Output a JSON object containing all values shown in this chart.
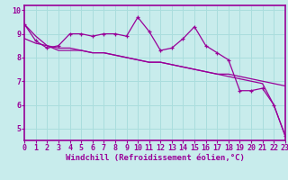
{
  "title": "",
  "xlabel": "Windchill (Refroidissement éolien,°C)",
  "bg_color": "#c8ecec",
  "line_color": "#990099",
  "grid_color": "#aadddd",
  "spine_color": "#990099",
  "tick_color": "#990099",
  "label_color": "#990099",
  "hours": [
    0,
    1,
    2,
    3,
    4,
    5,
    6,
    7,
    8,
    9,
    10,
    11,
    12,
    13,
    14,
    15,
    16,
    17,
    18,
    19,
    20,
    21,
    22,
    23
  ],
  "line1": [
    9.4,
    8.7,
    8.4,
    8.5,
    9.0,
    9.0,
    8.9,
    9.0,
    9.0,
    8.9,
    9.7,
    9.1,
    8.3,
    8.4,
    8.8,
    9.3,
    8.5,
    8.2,
    7.9,
    6.6,
    6.6,
    6.7,
    6.0,
    4.7
  ],
  "line2": [
    8.8,
    8.6,
    8.5,
    8.4,
    8.4,
    8.3,
    8.2,
    8.2,
    8.1,
    8.0,
    7.9,
    7.8,
    7.8,
    7.7,
    7.6,
    7.5,
    7.4,
    7.3,
    7.3,
    7.2,
    7.1,
    7.0,
    6.9,
    6.8
  ],
  "line3": [
    9.4,
    8.9,
    8.5,
    8.3,
    8.3,
    8.3,
    8.2,
    8.2,
    8.1,
    8.0,
    7.9,
    7.8,
    7.8,
    7.7,
    7.6,
    7.5,
    7.4,
    7.3,
    7.2,
    7.1,
    7.0,
    6.9,
    6.0,
    4.7
  ],
  "xlim": [
    0,
    23
  ],
  "ylim": [
    4.5,
    10.2
  ],
  "yticks": [
    5,
    6,
    7,
    8,
    9,
    10
  ],
  "fontsize_xlabel": 6.5,
  "fontsize_ticks": 6.0
}
